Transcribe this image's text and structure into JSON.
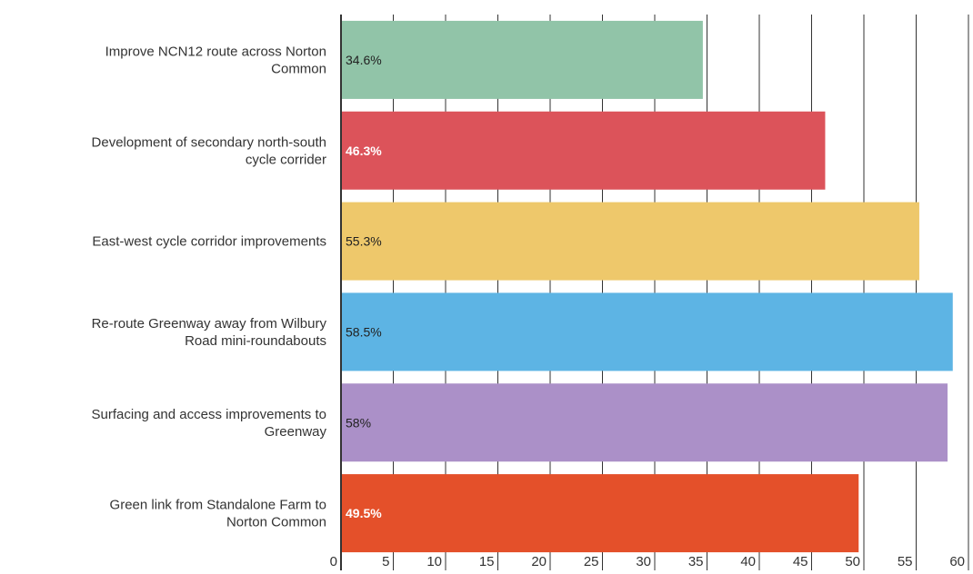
{
  "chart_data": {
    "type": "bar",
    "orientation": "horizontal",
    "categories": [
      [
        "Improve NCN12 route across Norton",
        "Common"
      ],
      [
        "Development of secondary north-south",
        "cycle corrider"
      ],
      [
        "East-west cycle corridor improvements"
      ],
      [
        "Re-route Greenway away from Wilbury",
        "Road mini-roundabouts"
      ],
      [
        "Surfacing and access improvements to",
        "Greenway"
      ],
      [
        "Green link from Standalone Farm to",
        "Norton Common"
      ]
    ],
    "values": [
      34.6,
      46.3,
      55.3,
      58.5,
      58,
      49.5
    ],
    "data_labels": [
      "34.6%",
      "46.3%",
      "55.3%",
      "58.5%",
      "58%",
      "49.5%"
    ],
    "bar_colors": [
      "#91c4a8",
      "#dc535a",
      "#eec86b",
      "#5db4e4",
      "#ab90c8",
      "#e4502a"
    ],
    "label_colors": [
      "#222222",
      "#ffffff",
      "#222222",
      "#222222",
      "#222222",
      "#ffffff"
    ],
    "label_bold": [
      false,
      true,
      false,
      false,
      false,
      true
    ],
    "xlim": [
      0,
      60
    ],
    "x_ticks": [
      0,
      5,
      10,
      15,
      20,
      25,
      30,
      35,
      40,
      45,
      50,
      55,
      60
    ],
    "x_tick_labels": [
      "0",
      "5",
      "10",
      "15",
      "20",
      "25",
      "30",
      "35",
      "40",
      "45",
      "50",
      "55",
      "60"
    ],
    "grid": true,
    "legend": "none",
    "title": "",
    "xlabel": "",
    "ylabel": ""
  }
}
